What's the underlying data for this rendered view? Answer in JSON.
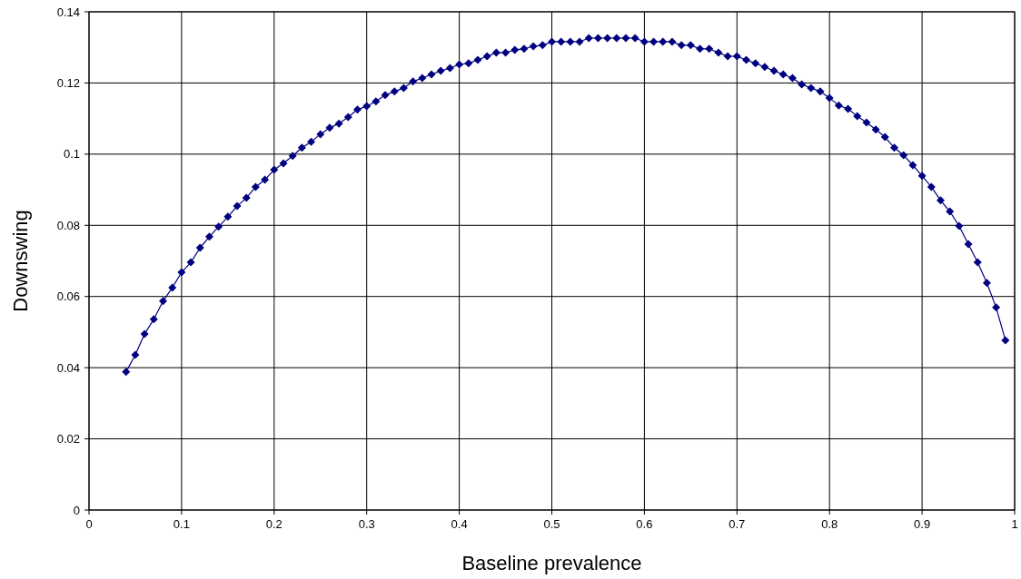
{
  "chart_data": {
    "type": "line",
    "xlabel": "Baseline prevalence",
    "ylabel": "Downswing",
    "x": [
      0.04,
      0.05,
      0.06,
      0.07,
      0.08,
      0.09,
      0.1,
      0.11,
      0.12,
      0.13,
      0.14,
      0.15,
      0.16,
      0.17,
      0.18,
      0.19,
      0.2,
      0.21,
      0.22,
      0.23,
      0.24,
      0.25,
      0.26,
      0.27,
      0.28,
      0.29,
      0.3,
      0.31,
      0.32,
      0.33,
      0.34,
      0.35,
      0.36,
      0.37,
      0.38,
      0.39,
      0.4,
      0.41,
      0.42,
      0.43,
      0.44,
      0.45,
      0.46,
      0.47,
      0.48,
      0.49,
      0.5,
      0.51,
      0.52,
      0.53,
      0.54,
      0.55,
      0.56,
      0.57,
      0.58,
      0.59,
      0.6,
      0.61,
      0.62,
      0.63,
      0.64,
      0.65,
      0.66,
      0.67,
      0.68,
      0.69,
      0.7,
      0.71,
      0.72,
      0.73,
      0.74,
      0.75,
      0.76,
      0.77,
      0.78,
      0.79,
      0.8,
      0.81,
      0.82,
      0.83,
      0.84,
      0.85,
      0.86,
      0.87,
      0.88,
      0.89,
      0.9,
      0.91,
      0.92,
      0.93,
      0.94,
      0.95,
      0.96,
      0.97,
      0.98,
      0.99
    ],
    "series": [
      {
        "color": "#000080",
        "values": [
          0.0388,
          0.0436,
          0.0495,
          0.0536,
          0.0587,
          0.0625,
          0.0668,
          0.0696,
          0.0737,
          0.0768,
          0.0796,
          0.0824,
          0.0854,
          0.0877,
          0.0908,
          0.0928,
          0.0956,
          0.0974,
          0.0995,
          0.1018,
          0.1035,
          0.1056,
          0.1074,
          0.1086,
          0.1104,
          0.1125,
          0.1135,
          0.1148,
          0.1166,
          0.1176,
          0.1186,
          0.1204,
          0.1214,
          0.1224,
          0.1234,
          0.1242,
          0.1252,
          0.1255,
          0.1265,
          0.1275,
          0.1285,
          0.1285,
          0.1293,
          0.1296,
          0.1303,
          0.1306,
          0.1316,
          0.1316,
          0.1316,
          0.1316,
          0.1326,
          0.1326,
          0.1326,
          0.1326,
          0.1326,
          0.1326,
          0.1316,
          0.1316,
          0.1316,
          0.1316,
          0.1306,
          0.1306,
          0.1296,
          0.1296,
          0.1285,
          0.1275,
          0.1275,
          0.1265,
          0.1255,
          0.1245,
          0.1234,
          0.1224,
          0.1214,
          0.1196,
          0.1186,
          0.1176,
          0.1158,
          0.1137,
          0.1127,
          0.1107,
          0.1089,
          0.1069,
          0.1048,
          0.1018,
          0.0997,
          0.0969,
          0.0939,
          0.0908,
          0.087,
          0.0839,
          0.0798,
          0.0747,
          0.0696,
          0.0638,
          0.0569,
          0.0477
        ]
      }
    ],
    "xlim": [
      0,
      1
    ],
    "xticks": [
      0,
      0.1,
      0.2,
      0.3,
      0.4,
      0.5,
      0.6,
      0.7,
      0.8,
      0.9,
      1
    ],
    "ylim": [
      0,
      0.14
    ],
    "yticks": [
      0,
      0.02,
      0.04,
      0.06,
      0.08,
      0.1,
      0.12,
      0.14
    ],
    "grid": true,
    "marker": "diamond",
    "line_style": "solid"
  }
}
